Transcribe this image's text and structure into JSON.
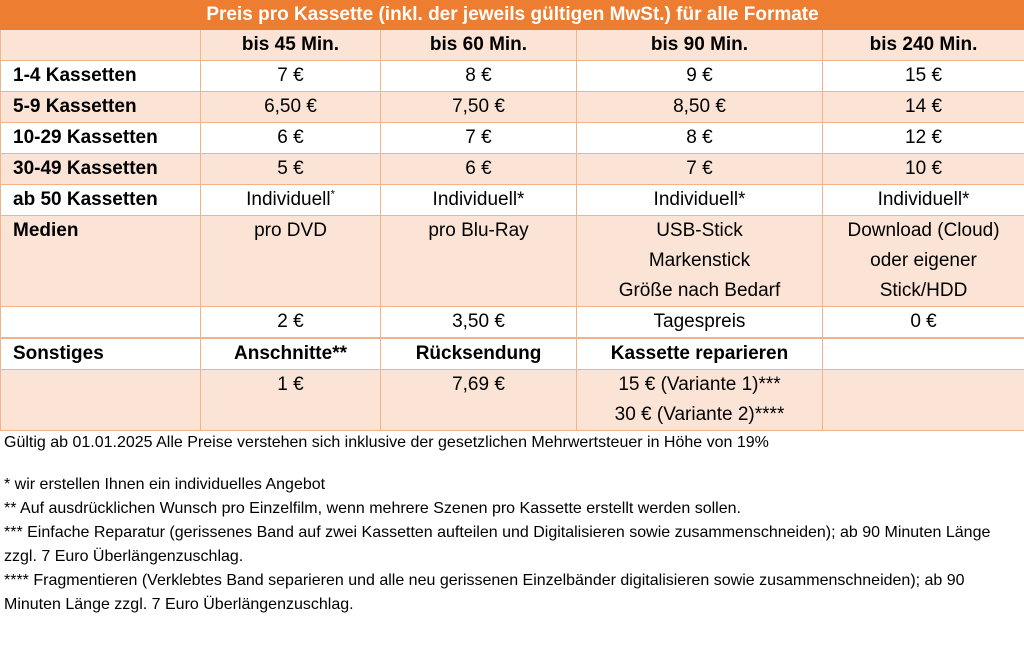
{
  "table": {
    "title": "Preis pro Kassette (inkl. der jeweils gültigen MwSt.) für alle Formate",
    "columns": [
      "",
      "bis 45 Min.",
      "bis 60 Min.",
      "bis 90 Min.",
      "bis 240 Min."
    ],
    "rows": [
      {
        "label": "1-4 Kassetten",
        "cells": [
          "7 €",
          "8 €",
          "9 €",
          "15 €"
        ]
      },
      {
        "label": "5-9 Kassetten",
        "cells": [
          "6,50 €",
          "7,50 €",
          "8,50 €",
          "14 €"
        ]
      },
      {
        "label": "10-29 Kassetten",
        "cells": [
          "6 €",
          "7 €",
          "8 €",
          "12 €"
        ]
      },
      {
        "label": "30-49 Kassetten",
        "cells": [
          "5 €",
          "6 €",
          "7 €",
          "10 €"
        ]
      },
      {
        "label": "ab 50 Kassetten",
        "cells": [
          "Individuell",
          "Individuell*",
          "Individuell*",
          "Individuell*"
        ],
        "first_sup": "*"
      }
    ],
    "medien": {
      "label": "Medien",
      "dvd": "pro DVD",
      "bluray": "pro Blu-Ray",
      "usb": [
        "USB-Stick",
        "Markenstick",
        "Größe nach Bedarf"
      ],
      "download": [
        "Download (Cloud)",
        "oder eigener",
        "Stick/HDD"
      ]
    },
    "medien_prices": [
      "2 €",
      "3,50 €",
      "Tagespreis",
      "0 €"
    ],
    "sonstiges": {
      "label": "Sonstiges",
      "headers": [
        "Anschnitte**",
        "Rücksendung",
        "Kassette reparieren"
      ],
      "values": {
        "anschnitte": "1 €",
        "ruecksendung": "7,69 €",
        "reparieren": [
          "15 € (Variante 1)***",
          "30 € (Variante 2)****"
        ]
      }
    }
  },
  "notes": {
    "valid": "Gültig ab 01.01.2025 Alle Preise verstehen sich inklusive der gesetzlichen Mehrwertsteuer in Höhe von 19%",
    "footnotes": [
      "* wir erstellen Ihnen ein individuelles Angebot",
      "** Auf ausdrücklichen Wunsch pro Einzelfilm, wenn mehrere Szenen pro Kassette erstellt werden sollen.",
      "*** Einfache Reparatur (gerissenes Band auf zwei Kassetten aufteilen und Digitalisieren sowie zusammenschneiden); ab 90 Minuten Länge zzgl. 7 Euro Überlängenzuschlag.",
      "**** Fragmentieren (Verklebtes Band separieren und alle neu gerissenen Einzelbänder digitalisieren sowie zusammenschneiden); ab 90 Minuten Länge zzgl. 7 Euro Überlängenzuschlag."
    ]
  }
}
